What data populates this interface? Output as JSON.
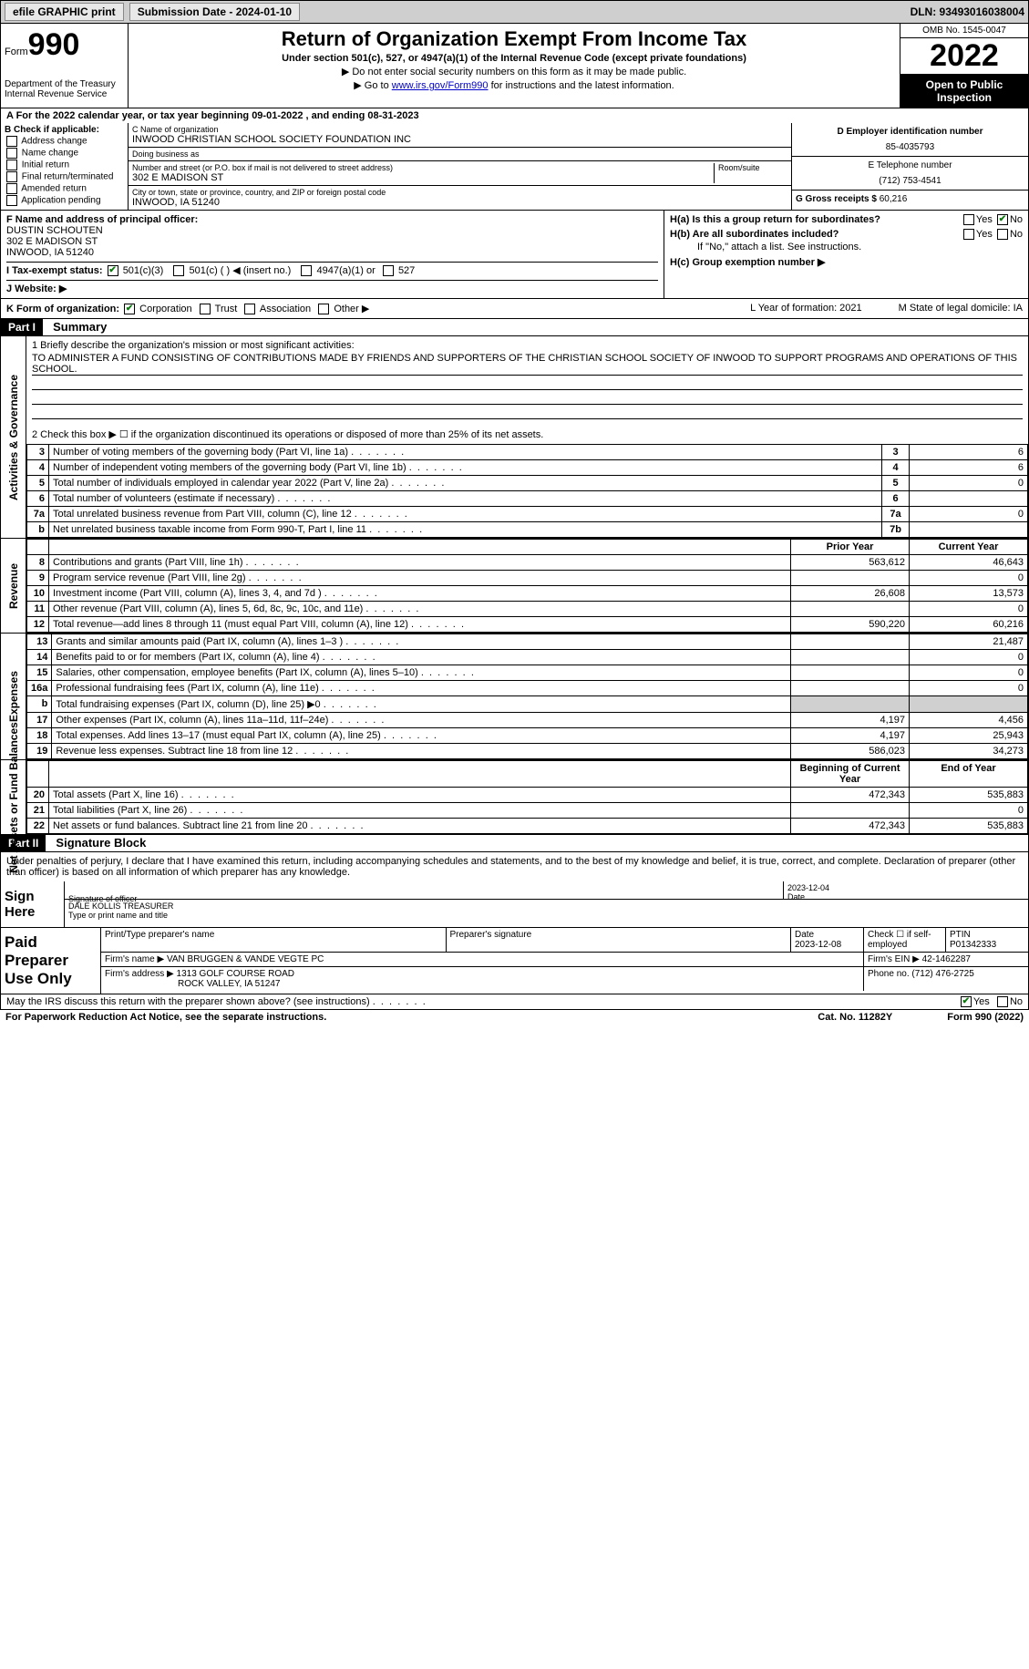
{
  "topbar": {
    "efile": "efile GRAPHIC print",
    "sub_date_label": "Submission Date - 2024-01-10",
    "dln": "DLN: 93493016038004"
  },
  "header": {
    "form_label": "Form",
    "form_num": "990",
    "dept": "Department of the Treasury",
    "irs": "Internal Revenue Service",
    "title": "Return of Organization Exempt From Income Tax",
    "sub": "Under section 501(c), 527, or 4947(a)(1) of the Internal Revenue Code (except private foundations)",
    "note": "▶ Do not enter social security numbers on this form as it may be made public.",
    "link_prefix": "▶ Go to ",
    "link_url": "www.irs.gov/Form990",
    "link_suffix": " for instructions and the latest information.",
    "omb": "OMB No. 1545-0047",
    "year": "2022",
    "inspect": "Open to Public Inspection"
  },
  "row_a": "A For the 2022 calendar year, or tax year beginning 09-01-2022    , and ending 08-31-2023",
  "col_b": {
    "title": "B Check if applicable:",
    "items": [
      "Address change",
      "Name change",
      "Initial return",
      "Final return/terminated",
      "Amended return",
      "Application pending"
    ]
  },
  "col_c": {
    "name_label": "C Name of organization",
    "name": "INWOOD CHRISTIAN SCHOOL SOCIETY FOUNDATION INC",
    "dba_label": "Doing business as",
    "dba": "",
    "addr_label": "Number and street (or P.O. box if mail is not delivered to street address)",
    "addr": "302 E MADISON ST",
    "room_label": "Room/suite",
    "city_label": "City or town, state or province, country, and ZIP or foreign postal code",
    "city": "INWOOD, IA  51240"
  },
  "col_de": {
    "d_label": "D Employer identification number",
    "d_val": "85-4035793",
    "e_label": "E Telephone number",
    "e_val": "(712) 753-4541",
    "g_label": "G Gross receipts $",
    "g_val": "60,216"
  },
  "row_f": {
    "label": "F  Name and address of principal officer:",
    "name": "DUSTIN SCHOUTEN",
    "addr1": "302 E MADISON ST",
    "addr2": "INWOOD, IA  51240"
  },
  "row_h": {
    "a": "H(a)  Is this a group return for subordinates?",
    "b": "H(b)  Are all subordinates included?",
    "b_note": "If \"No,\" attach a list. See instructions.",
    "c": "H(c)  Group exemption number ▶",
    "yes": "Yes",
    "no": "No"
  },
  "row_i": {
    "label": "I  Tax-exempt status:",
    "o1": "501(c)(3)",
    "o2": "501(c) (  ) ◀ (insert no.)",
    "o3": "4947(a)(1) or",
    "o4": "527"
  },
  "row_j": "J  Website: ▶",
  "row_k": {
    "label": "K Form of organization:",
    "o1": "Corporation",
    "o2": "Trust",
    "o3": "Association",
    "o4": "Other ▶",
    "l": "L Year of formation: 2021",
    "m": "M State of legal domicile: IA"
  },
  "part1": {
    "hdr": "Part I",
    "title": "Summary",
    "strip1": "Activities & Governance",
    "strip2": "Revenue",
    "strip3": "Expenses",
    "strip4": "Net Assets or Fund Balances",
    "line1_label": "1   Briefly describe the organization's mission or most significant activities:",
    "line1_text": "TO ADMINISTER A FUND CONSISTING OF CONTRIBUTIONS MADE BY FRIENDS AND SUPPORTERS OF THE CHRISTIAN SCHOOL SOCIETY OF INWOOD TO SUPPORT PROGRAMS AND OPERATIONS OF THIS SCHOOL.",
    "line2": "2   Check this box ▶ ☐  if the organization discontinued its operations or disposed of more than 25% of its net assets.",
    "rows_gov": [
      {
        "n": "3",
        "lbl": "Number of voting members of the governing body (Part VI, line 1a)",
        "box": "3",
        "val": "6"
      },
      {
        "n": "4",
        "lbl": "Number of independent voting members of the governing body (Part VI, line 1b)",
        "box": "4",
        "val": "6"
      },
      {
        "n": "5",
        "lbl": "Total number of individuals employed in calendar year 2022 (Part V, line 2a)",
        "box": "5",
        "val": "0"
      },
      {
        "n": "6",
        "lbl": "Total number of volunteers (estimate if necessary)",
        "box": "6",
        "val": ""
      },
      {
        "n": "7a",
        "lbl": "Total unrelated business revenue from Part VIII, column (C), line 12",
        "box": "7a",
        "val": "0"
      },
      {
        "n": "b",
        "lbl": "Net unrelated business taxable income from Form 990-T, Part I, line 11",
        "box": "7b",
        "val": ""
      }
    ],
    "col_prior": "Prior Year",
    "col_curr": "Current Year",
    "rows_rev": [
      {
        "n": "8",
        "lbl": "Contributions and grants (Part VIII, line 1h)",
        "p": "563,612",
        "c": "46,643"
      },
      {
        "n": "9",
        "lbl": "Program service revenue (Part VIII, line 2g)",
        "p": "",
        "c": "0"
      },
      {
        "n": "10",
        "lbl": "Investment income (Part VIII, column (A), lines 3, 4, and 7d )",
        "p": "26,608",
        "c": "13,573"
      },
      {
        "n": "11",
        "lbl": "Other revenue (Part VIII, column (A), lines 5, 6d, 8c, 9c, 10c, and 11e)",
        "p": "",
        "c": "0"
      },
      {
        "n": "12",
        "lbl": "Total revenue—add lines 8 through 11 (must equal Part VIII, column (A), line 12)",
        "p": "590,220",
        "c": "60,216"
      }
    ],
    "rows_exp": [
      {
        "n": "13",
        "lbl": "Grants and similar amounts paid (Part IX, column (A), lines 1–3 )",
        "p": "",
        "c": "21,487"
      },
      {
        "n": "14",
        "lbl": "Benefits paid to or for members (Part IX, column (A), line 4)",
        "p": "",
        "c": "0"
      },
      {
        "n": "15",
        "lbl": "Salaries, other compensation, employee benefits (Part IX, column (A), lines 5–10)",
        "p": "",
        "c": "0"
      },
      {
        "n": "16a",
        "lbl": "Professional fundraising fees (Part IX, column (A), line 11e)",
        "p": "",
        "c": "0"
      },
      {
        "n": "b",
        "lbl": "Total fundraising expenses (Part IX, column (D), line 25) ▶0",
        "p": "shade",
        "c": "shade"
      },
      {
        "n": "17",
        "lbl": "Other expenses (Part IX, column (A), lines 11a–11d, 11f–24e)",
        "p": "4,197",
        "c": "4,456"
      },
      {
        "n": "18",
        "lbl": "Total expenses. Add lines 13–17 (must equal Part IX, column (A), line 25)",
        "p": "4,197",
        "c": "25,943"
      },
      {
        "n": "19",
        "lbl": "Revenue less expenses. Subtract line 18 from line 12",
        "p": "586,023",
        "c": "34,273"
      }
    ],
    "col_beg": "Beginning of Current Year",
    "col_end": "End of Year",
    "rows_net": [
      {
        "n": "20",
        "lbl": "Total assets (Part X, line 16)",
        "p": "472,343",
        "c": "535,883"
      },
      {
        "n": "21",
        "lbl": "Total liabilities (Part X, line 26)",
        "p": "",
        "c": "0"
      },
      {
        "n": "22",
        "lbl": "Net assets or fund balances. Subtract line 21 from line 20",
        "p": "472,343",
        "c": "535,883"
      }
    ]
  },
  "part2": {
    "hdr": "Part II",
    "title": "Signature Block",
    "decl": "Under penalties of perjury, I declare that I have examined this return, including accompanying schedules and statements, and to the best of my knowledge and belief, it is true, correct, and complete. Declaration of preparer (other than officer) is based on all information of which preparer has any knowledge."
  },
  "sign": {
    "left": "Sign Here",
    "sig_label": "Signature of officer",
    "date_label": "Date",
    "date": "2023-12-04",
    "name": "DALE KOLLIS  TREASURER",
    "name_label": "Type or print name and title"
  },
  "prep": {
    "left": "Paid Preparer Use Only",
    "r1c1": "Print/Type preparer's name",
    "r1c2": "Preparer's signature",
    "r1c3": "Date",
    "r1c3v": "2023-12-08",
    "r1c4": "Check ☐ if self-employed",
    "r1c5": "PTIN",
    "r1c5v": "P01342333",
    "r2l": "Firm's name    ▶",
    "r2v": "VAN BRUGGEN & VANDE VEGTE PC",
    "r2r": "Firm's EIN ▶",
    "r2rv": "42-1462287",
    "r3l": "Firm's address ▶",
    "r3v": "1313 GOLF COURSE ROAD",
    "r3v2": "ROCK VALLEY, IA  51247",
    "r3r": "Phone no.",
    "r3rv": "(712) 476-2725"
  },
  "discuss": {
    "q": "May the IRS discuss this return with the preparer shown above? (see instructions)",
    "yes": "Yes",
    "no": "No"
  },
  "footer": {
    "left": "For Paperwork Reduction Act Notice, see the separate instructions.",
    "mid": "Cat. No. 11282Y",
    "right": "Form 990 (2022)"
  }
}
